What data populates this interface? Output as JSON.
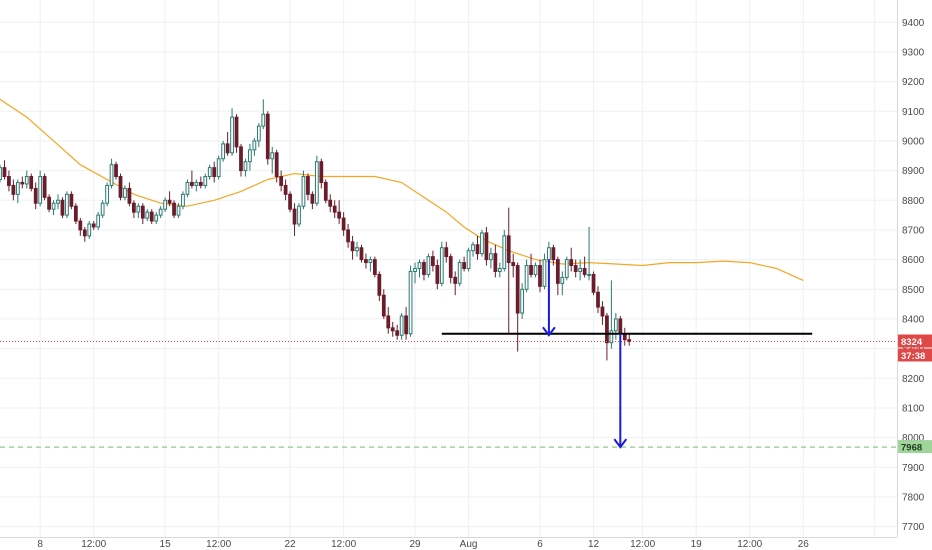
{
  "chart_data": {
    "type": "candlestick",
    "y_axis": {
      "side": "right",
      "range": [
        7665,
        9475
      ],
      "ticks": [
        7700,
        7800,
        7900,
        8000,
        8100,
        8200,
        8300,
        8400,
        8500,
        8600,
        8700,
        8800,
        8900,
        9000,
        9100,
        9200,
        9300,
        9400
      ],
      "tick_labels": [
        "7700",
        "7800",
        "7900",
        "8000",
        "8100",
        "8200",
        "8300",
        "8400",
        "8500",
        "8600",
        "8700",
        "8800",
        "8900",
        "9000",
        "9100",
        "9200",
        "9300",
        "9400"
      ]
    },
    "x_axis": {
      "unit": "bar index (4-hour bars)",
      "range": [
        0,
        201
      ],
      "ticks": [
        9,
        21,
        37,
        49,
        65,
        77,
        93,
        105,
        121,
        133,
        144,
        156,
        168,
        180,
        196
      ],
      "tick_labels": [
        "8",
        "12:00",
        "15",
        "12:00",
        "22",
        "12:00",
        "29",
        "Aug",
        "6",
        "12",
        "12:00",
        "19",
        "12:00",
        "26",
        ""
      ]
    },
    "grid": true,
    "candles": [
      [
        8870,
        8920,
        8860,
        8910
      ],
      [
        8910,
        8935,
        8870,
        8880
      ],
      [
        8880,
        8900,
        8830,
        8850
      ],
      [
        8850,
        8870,
        8800,
        8820
      ],
      [
        8820,
        8870,
        8790,
        8860
      ],
      [
        8860,
        8880,
        8840,
        8855
      ],
      [
        8855,
        8900,
        8840,
        8880
      ],
      [
        8880,
        8890,
        8830,
        8840
      ],
      [
        8840,
        8860,
        8770,
        8790
      ],
      [
        8790,
        8900,
        8780,
        8880
      ],
      [
        8880,
        8890,
        8800,
        8810
      ],
      [
        8810,
        8820,
        8760,
        8770
      ],
      [
        8770,
        8800,
        8750,
        8790
      ],
      [
        8790,
        8820,
        8770,
        8800
      ],
      [
        8800,
        8810,
        8740,
        8750
      ],
      [
        8750,
        8830,
        8740,
        8820
      ],
      [
        8820,
        8830,
        8770,
        8780
      ],
      [
        8780,
        8790,
        8720,
        8730
      ],
      [
        8730,
        8740,
        8680,
        8700
      ],
      [
        8700,
        8710,
        8660,
        8680
      ],
      [
        8680,
        8730,
        8670,
        8720
      ],
      [
        8720,
        8730,
        8700,
        8710
      ],
      [
        8710,
        8760,
        8700,
        8750
      ],
      [
        8750,
        8800,
        8740,
        8790
      ],
      [
        8790,
        8860,
        8780,
        8850
      ],
      [
        8850,
        8940,
        8840,
        8920
      ],
      [
        8920,
        8930,
        8870,
        8880
      ],
      [
        8880,
        8890,
        8800,
        8810
      ],
      [
        8810,
        8850,
        8800,
        8840
      ],
      [
        8840,
        8860,
        8780,
        8790
      ],
      [
        8790,
        8800,
        8740,
        8760
      ],
      [
        8760,
        8790,
        8740,
        8780
      ],
      [
        8780,
        8790,
        8720,
        8740
      ],
      [
        8740,
        8770,
        8730,
        8760
      ],
      [
        8760,
        8770,
        8720,
        8730
      ],
      [
        8730,
        8760,
        8720,
        8750
      ],
      [
        8750,
        8780,
        8740,
        8770
      ],
      [
        8770,
        8810,
        8760,
        8800
      ],
      [
        8800,
        8830,
        8780,
        8790
      ],
      [
        8790,
        8800,
        8740,
        8750
      ],
      [
        8750,
        8790,
        8740,
        8780
      ],
      [
        8780,
        8830,
        8770,
        8820
      ],
      [
        8820,
        8870,
        8810,
        8860
      ],
      [
        8860,
        8900,
        8840,
        8850
      ],
      [
        8850,
        8870,
        8830,
        8860
      ],
      [
        8860,
        8880,
        8840,
        8850
      ],
      [
        8850,
        8890,
        8840,
        8880
      ],
      [
        8880,
        8920,
        8870,
        8910
      ],
      [
        8910,
        8930,
        8860,
        8880
      ],
      [
        8880,
        8950,
        8870,
        8940
      ],
      [
        8940,
        9000,
        8930,
        8990
      ],
      [
        8990,
        9030,
        8950,
        8960
      ],
      [
        8960,
        9110,
        8950,
        9080
      ],
      [
        9080,
        9090,
        8960,
        8980
      ],
      [
        8980,
        8990,
        8880,
        8900
      ],
      [
        8900,
        8940,
        8880,
        8930
      ],
      [
        8930,
        8990,
        8900,
        8970
      ],
      [
        8970,
        9010,
        8950,
        9000
      ],
      [
        9000,
        9060,
        8980,
        9050
      ],
      [
        9050,
        9140,
        9040,
        9090
      ],
      [
        9090,
        9100,
        8920,
        8940
      ],
      [
        8940,
        8980,
        8890,
        8960
      ],
      [
        8960,
        8970,
        8860,
        8880
      ],
      [
        8880,
        8900,
        8830,
        8850
      ],
      [
        8850,
        8870,
        8800,
        8820
      ],
      [
        8820,
        8830,
        8760,
        8770
      ],
      [
        8770,
        8790,
        8680,
        8720
      ],
      [
        8720,
        8790,
        8710,
        8780
      ],
      [
        8780,
        8900,
        8770,
        8880
      ],
      [
        8880,
        8890,
        8800,
        8820
      ],
      [
        8820,
        8830,
        8770,
        8790
      ],
      [
        8790,
        8950,
        8780,
        8930
      ],
      [
        8930,
        8940,
        8840,
        8860
      ],
      [
        8860,
        8870,
        8790,
        8800
      ],
      [
        8800,
        8820,
        8760,
        8780
      ],
      [
        8780,
        8800,
        8740,
        8760
      ],
      [
        8760,
        8800,
        8720,
        8740
      ],
      [
        8740,
        8760,
        8680,
        8700
      ],
      [
        8700,
        8720,
        8640,
        8660
      ],
      [
        8660,
        8680,
        8600,
        8630
      ],
      [
        8630,
        8660,
        8610,
        8640
      ],
      [
        8640,
        8650,
        8590,
        8600
      ],
      [
        8600,
        8620,
        8570,
        8590
      ],
      [
        8590,
        8610,
        8560,
        8600
      ],
      [
        8600,
        8610,
        8540,
        8550
      ],
      [
        8550,
        8560,
        8460,
        8480
      ],
      [
        8480,
        8500,
        8400,
        8410
      ],
      [
        8410,
        8440,
        8350,
        8370
      ],
      [
        8370,
        8390,
        8340,
        8360
      ],
      [
        8360,
        8380,
        8330,
        8345
      ],
      [
        8345,
        8420,
        8330,
        8410
      ],
      [
        8410,
        8440,
        8330,
        8350
      ],
      [
        8350,
        8580,
        8340,
        8560
      ],
      [
        8560,
        8590,
        8520,
        8570
      ],
      [
        8570,
        8600,
        8540,
        8590
      ],
      [
        8590,
        8600,
        8530,
        8550
      ],
      [
        8550,
        8620,
        8540,
        8610
      ],
      [
        8610,
        8630,
        8560,
        8580
      ],
      [
        8580,
        8600,
        8500,
        8520
      ],
      [
        8520,
        8660,
        8510,
        8640
      ],
      [
        8640,
        8660,
        8590,
        8610
      ],
      [
        8610,
        8620,
        8520,
        8540
      ],
      [
        8540,
        8560,
        8480,
        8520
      ],
      [
        8520,
        8600,
        8510,
        8590
      ],
      [
        8590,
        8610,
        8560,
        8570
      ],
      [
        8570,
        8640,
        8560,
        8630
      ],
      [
        8630,
        8660,
        8610,
        8650
      ],
      [
        8650,
        8680,
        8600,
        8620
      ],
      [
        8620,
        8700,
        8610,
        8690
      ],
      [
        8690,
        8710,
        8580,
        8600
      ],
      [
        8600,
        8640,
        8570,
        8620
      ],
      [
        8620,
        8650,
        8540,
        8560
      ],
      [
        8560,
        8590,
        8540,
        8570
      ],
      [
        8570,
        8700,
        8560,
        8680
      ],
      [
        8680,
        8775,
        8350,
        8590
      ],
      [
        8590,
        8620,
        8540,
        8580
      ],
      [
        8580,
        8590,
        8290,
        8420
      ],
      [
        8420,
        8520,
        8400,
        8500
      ],
      [
        8500,
        8600,
        8490,
        8580
      ],
      [
        8580,
        8620,
        8540,
        8550
      ],
      [
        8550,
        8590,
        8540,
        8580
      ],
      [
        8580,
        8600,
        8490,
        8510
      ],
      [
        8510,
        8620,
        8500,
        8600
      ],
      [
        8600,
        8660,
        8590,
        8640
      ],
      [
        8640,
        8650,
        8580,
        8600
      ],
      [
        8600,
        8610,
        8480,
        8520
      ],
      [
        8520,
        8560,
        8480,
        8540
      ],
      [
        8540,
        8610,
        8530,
        8600
      ],
      [
        8600,
        8640,
        8560,
        8580
      ],
      [
        8580,
        8600,
        8540,
        8560
      ],
      [
        8560,
        8600,
        8530,
        8570
      ],
      [
        8570,
        8610,
        8540,
        8550
      ],
      [
        8550,
        8710,
        8530,
        8550
      ],
      [
        8550,
        8560,
        8480,
        8490
      ],
      [
        8490,
        8510,
        8420,
        8440
      ],
      [
        8440,
        8460,
        8380,
        8410
      ],
      [
        8410,
        8420,
        8260,
        8320
      ],
      [
        8320,
        8530,
        8300,
        8360
      ],
      [
        8360,
        8420,
        8330,
        8400
      ],
      [
        8400,
        8410,
        8340,
        8350
      ],
      [
        8350,
        8370,
        8310,
        8330
      ],
      [
        8330,
        8350,
        8310,
        8324
      ]
    ],
    "moving_average": {
      "color": "#f5a623",
      "points": [
        [
          0,
          9140
        ],
        [
          6,
          9080
        ],
        [
          12,
          9000
        ],
        [
          18,
          8920
        ],
        [
          24,
          8870
        ],
        [
          30,
          8820
        ],
        [
          36,
          8790
        ],
        [
          42,
          8780
        ],
        [
          48,
          8800
        ],
        [
          54,
          8830
        ],
        [
          60,
          8870
        ],
        [
          66,
          8890
        ],
        [
          72,
          8880
        ],
        [
          78,
          8880
        ],
        [
          84,
          8880
        ],
        [
          90,
          8860
        ],
        [
          96,
          8800
        ],
        [
          100,
          8760
        ],
        [
          104,
          8710
        ],
        [
          108,
          8670
        ],
        [
          114,
          8630
        ],
        [
          120,
          8600
        ],
        [
          126,
          8585
        ],
        [
          132,
          8590
        ],
        [
          138,
          8585
        ],
        [
          144,
          8580
        ],
        [
          150,
          8590
        ],
        [
          156,
          8590
        ],
        [
          162,
          8595
        ],
        [
          168,
          8590
        ],
        [
          174,
          8570
        ],
        [
          180,
          8530
        ]
      ]
    },
    "annotations": {
      "support_line": {
        "value": 8350,
        "x_from": 99,
        "x_to": 182,
        "color": "#000000"
      },
      "arrow_1": {
        "x": 123,
        "from_value": 8600,
        "to_value": 8345,
        "color": "#1a1adb"
      },
      "arrow_2": {
        "x": 139,
        "from_value": 8350,
        "to_value": 7968,
        "color": "#1a1adb"
      }
    },
    "current_price": {
      "value": 8324,
      "label": "8324",
      "countdown": "37:38",
      "color": "#e04848"
    },
    "target": {
      "value": 7968,
      "label": "7968",
      "color": "#9fd49a"
    }
  }
}
